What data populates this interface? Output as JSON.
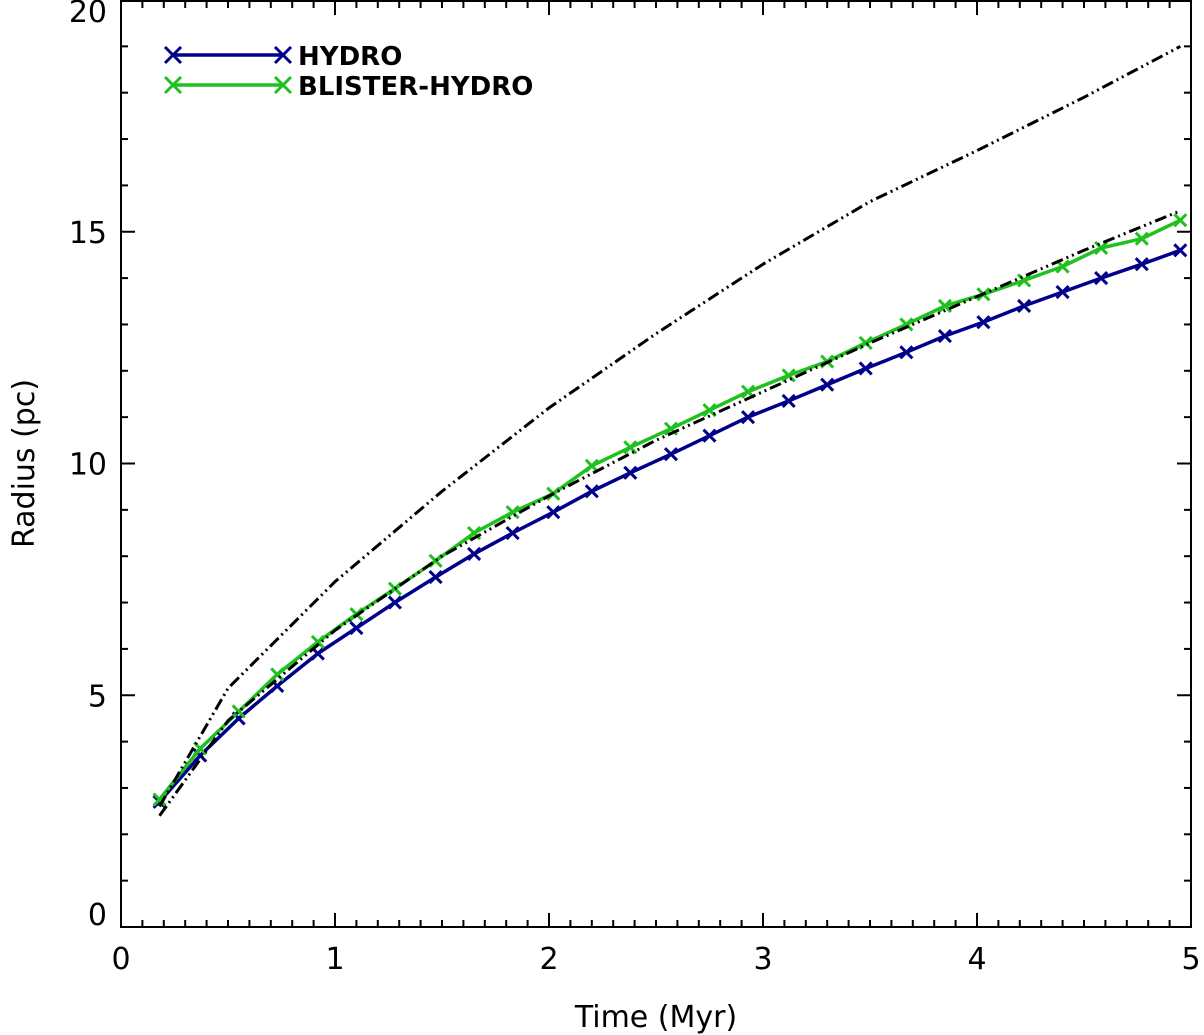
{
  "chart_data": {
    "type": "line",
    "title": "",
    "xlabel": "Time (Myr)",
    "ylabel": "Radius (pc)",
    "xlim": [
      0,
      5
    ],
    "ylim": [
      0,
      20
    ],
    "x_ticks": [
      "0",
      "1",
      "2",
      "3",
      "4",
      "5"
    ],
    "y_ticks": [
      "0",
      "5",
      "10",
      "15",
      "20"
    ],
    "grid": false,
    "legend_position": "top-left",
    "series": [
      {
        "name": "HYDRO",
        "color": "#00008b",
        "marker": "x",
        "x": [
          0.18,
          0.37,
          0.55,
          0.73,
          0.92,
          1.1,
          1.28,
          1.47,
          1.65,
          1.83,
          2.02,
          2.2,
          2.38,
          2.57,
          2.75,
          2.93,
          3.12,
          3.3,
          3.48,
          3.67,
          3.85,
          4.03,
          4.22,
          4.4,
          4.58,
          4.77,
          4.95
        ],
        "y": [
          2.7,
          3.7,
          4.5,
          5.2,
          5.9,
          6.45,
          7.0,
          7.55,
          8.05,
          8.5,
          8.95,
          9.4,
          9.8,
          10.2,
          10.6,
          11.0,
          11.35,
          11.7,
          12.05,
          12.4,
          12.75,
          13.05,
          13.4,
          13.7,
          14.0,
          14.3,
          14.6
        ]
      },
      {
        "name": "BLISTER-HYDRO",
        "color": "#1ec11e",
        "marker": "x",
        "x": [
          0.18,
          0.37,
          0.55,
          0.73,
          0.92,
          1.1,
          1.28,
          1.47,
          1.65,
          1.83,
          2.02,
          2.2,
          2.38,
          2.57,
          2.75,
          2.93,
          3.12,
          3.3,
          3.48,
          3.67,
          3.85,
          4.03,
          4.22,
          4.4,
          4.58,
          4.77,
          4.95
        ],
        "y": [
          2.75,
          3.85,
          4.65,
          5.45,
          6.15,
          6.75,
          7.3,
          7.9,
          8.5,
          8.95,
          9.35,
          9.95,
          10.35,
          10.75,
          11.15,
          11.55,
          11.9,
          12.2,
          12.6,
          13.0,
          13.4,
          13.65,
          13.95,
          14.25,
          14.65,
          14.85,
          15.25
        ]
      },
      {
        "color": "#000000",
        "dash": "dash-dot-dot",
        "x": [
          0.18,
          0.5,
          1.0,
          1.5,
          2.0,
          2.5,
          3.0,
          3.5,
          4.0,
          4.5,
          4.95
        ],
        "y": [
          2.4,
          4.45,
          6.4,
          8.0,
          9.3,
          10.5,
          11.55,
          12.6,
          13.6,
          14.6,
          15.45
        ]
      },
      {
        "color": "#000000",
        "dash": "dash-dot-dot",
        "x": [
          0.18,
          0.5,
          1.0,
          1.5,
          2.0,
          2.5,
          3.0,
          3.5,
          4.0,
          4.5,
          4.95
        ],
        "y": [
          2.6,
          5.15,
          7.45,
          9.4,
          11.2,
          12.8,
          14.3,
          15.65,
          16.75,
          17.9,
          19.0
        ]
      }
    ]
  }
}
